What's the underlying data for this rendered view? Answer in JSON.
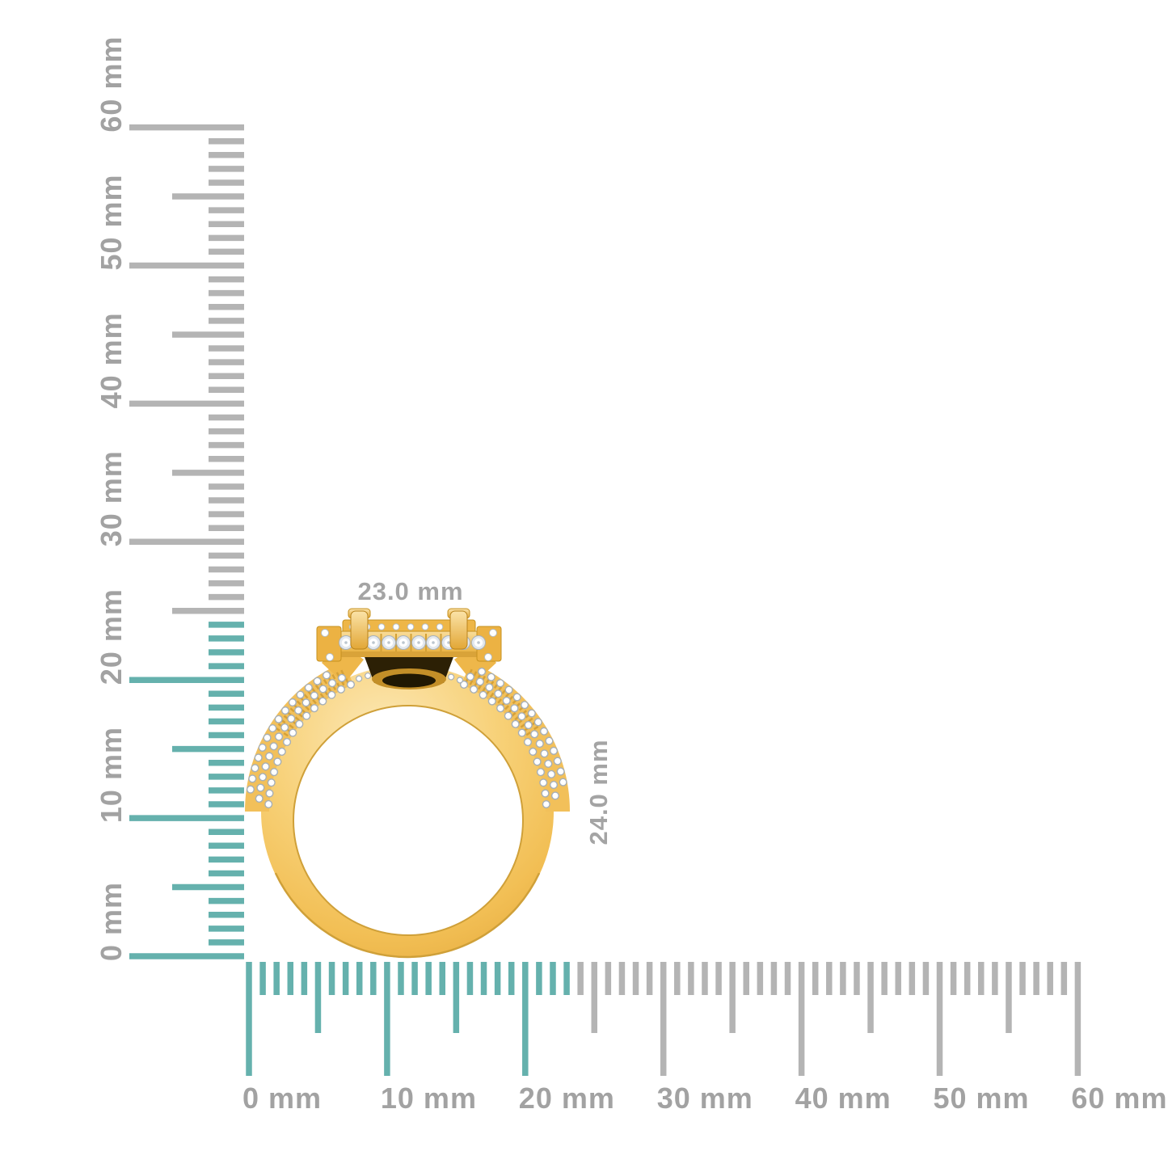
{
  "figure": {
    "subject": "gold-diamond-ring-side-profile",
    "width_label": "23.0 mm",
    "height_label": "24.0 mm"
  },
  "rulers": {
    "unit": "mm",
    "minor_step_mm": 1,
    "medium_step_mm": 5,
    "major_step_mm": 10,
    "vertical": {
      "min_mm": 0,
      "max_mm": 60,
      "labels": [
        "0 mm",
        "10 mm",
        "20 mm",
        "30 mm",
        "40 mm",
        "50 mm",
        "60 mm"
      ],
      "highlight_to_mm": 24
    },
    "horizontal": {
      "min_mm": 0,
      "max_mm": 60,
      "labels": [
        "0 mm",
        "10 mm",
        "20 mm",
        "30 mm",
        "40 mm",
        "50 mm",
        "60 mm"
      ],
      "highlight_to_mm": 23
    }
  },
  "colors": {
    "background": "#ffffff",
    "highlight_teal": "#65b1ad",
    "tick_gray": "#b4b4b4",
    "ruler_label_gray": "#a2a2a2",
    "dimension_label_gray": "#a4a4a4",
    "gold_light": "#fce8b6",
    "gold_mid": "#f5c96c",
    "gold_deep": "#e5aa3c",
    "gold_outline": "#c6911f",
    "diamond_white": "#ffffff",
    "diamond_shadow": "#a6afb7",
    "gallery_dark": "#2c2005"
  }
}
